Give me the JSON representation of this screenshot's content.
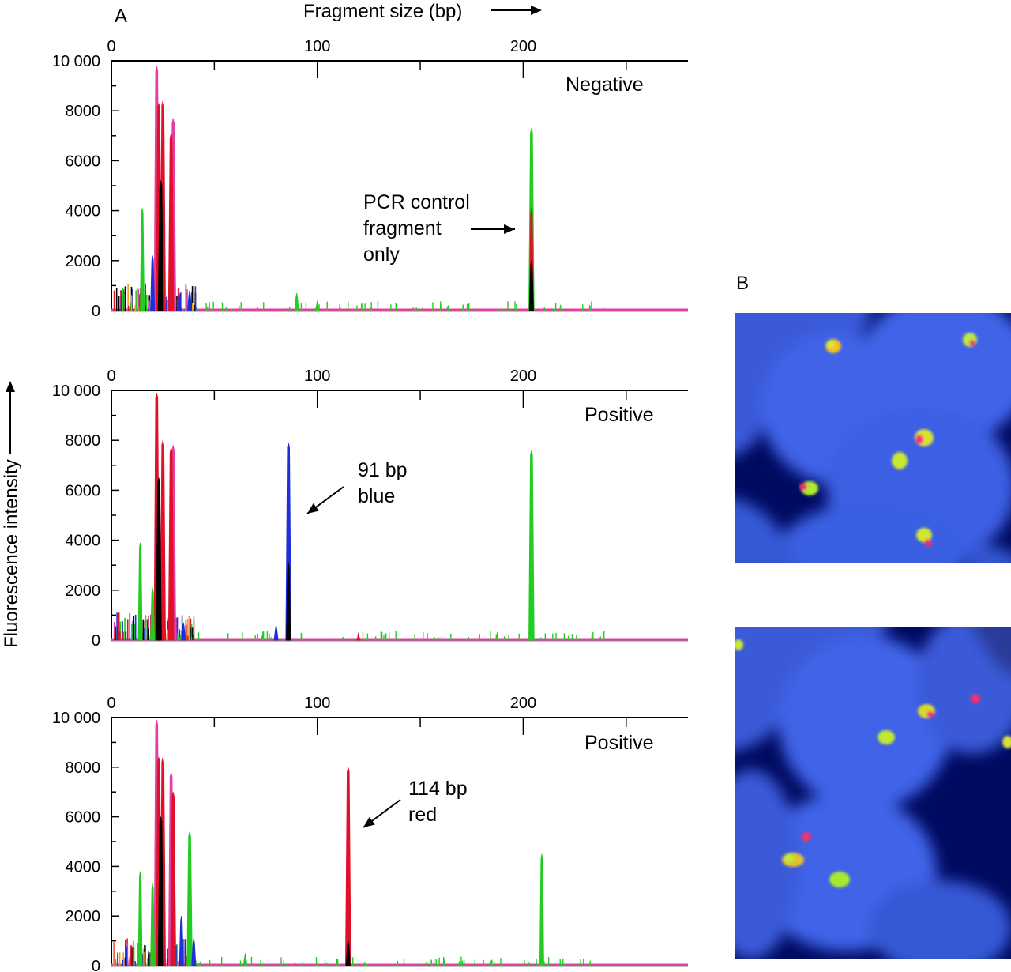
{
  "figure": {
    "panel_a_label": "A",
    "panel_b_label": "B",
    "top_axis_label": "Fragment size (bp)",
    "y_axis_label": "Fluorescence intensity",
    "colors": {
      "green": "#22cc22",
      "red": "#e0102a",
      "blue": "#1f2fd8",
      "black": "#000000",
      "magenta": "#e040a0",
      "orange": "#e8a020",
      "nucleus_blue": "#3f63e8",
      "background_dark": "#000a60"
    }
  },
  "chart_data": [
    {
      "type": "line",
      "panel": "A-top",
      "title": "Negative",
      "xlabel": "Fragment size (bp)",
      "ylabel": "Fluorescence intensity",
      "xlim": [
        0,
        280
      ],
      "ylim": [
        0,
        10000
      ],
      "x_ticks": [
        0,
        100,
        200
      ],
      "y_ticks": [
        0,
        2000,
        4000,
        6000,
        8000,
        10000
      ],
      "y_tick_labels": [
        "0",
        "2000",
        "4000",
        "6000",
        "8000",
        "10 000"
      ],
      "annotations": [
        {
          "lines": [
            "PCR control",
            "fragment",
            "only"
          ],
          "points_to_x": 204
        }
      ],
      "peaks": [
        {
          "x": 15,
          "y": 4100,
          "series": "green"
        },
        {
          "x": 20,
          "y": 2200,
          "series": "blue"
        },
        {
          "x": 22,
          "y": 9800,
          "series": "magenta"
        },
        {
          "x": 23,
          "y": 8300,
          "series": "red"
        },
        {
          "x": 24,
          "y": 5200,
          "series": "black"
        },
        {
          "x": 25,
          "y": 8400,
          "series": "red"
        },
        {
          "x": 29,
          "y": 7100,
          "series": "red"
        },
        {
          "x": 30,
          "y": 7700,
          "series": "magenta"
        },
        {
          "x": 33,
          "y": 700,
          "series": "blue"
        },
        {
          "x": 38,
          "y": 800,
          "series": "blue"
        },
        {
          "x": 90,
          "y": 700,
          "series": "green"
        },
        {
          "x": 100,
          "y": 400,
          "series": "green"
        },
        {
          "x": 204,
          "y": 7300,
          "series": "green"
        },
        {
          "x": 204,
          "y": 4100,
          "series": "red"
        },
        {
          "x": 204,
          "y": 2000,
          "series": "black"
        }
      ]
    },
    {
      "type": "line",
      "panel": "A-middle",
      "title": "Positive",
      "xlabel": "Fragment size (bp)",
      "ylabel": "Fluorescence intensity",
      "xlim": [
        0,
        280
      ],
      "ylim": [
        0,
        10000
      ],
      "x_ticks": [
        0,
        100,
        200
      ],
      "y_ticks": [
        0,
        2000,
        4000,
        6000,
        8000,
        10000
      ],
      "y_tick_labels": [
        "0",
        "2000",
        "4000",
        "6000",
        "8000",
        "10 000"
      ],
      "annotations": [
        {
          "lines": [
            "91 bp",
            "blue"
          ],
          "points_to_x": 91
        }
      ],
      "peaks": [
        {
          "x": 14,
          "y": 3900,
          "series": "green"
        },
        {
          "x": 20,
          "y": 2100,
          "series": "green"
        },
        {
          "x": 22,
          "y": 9900,
          "series": "red"
        },
        {
          "x": 23,
          "y": 6500,
          "series": "black"
        },
        {
          "x": 25,
          "y": 8000,
          "series": "red"
        },
        {
          "x": 29,
          "y": 7700,
          "series": "red"
        },
        {
          "x": 30,
          "y": 7800,
          "series": "magenta"
        },
        {
          "x": 35,
          "y": 700,
          "series": "blue"
        },
        {
          "x": 80,
          "y": 600,
          "series": "blue"
        },
        {
          "x": 86,
          "y": 7900,
          "series": "blue"
        },
        {
          "x": 86,
          "y": 3100,
          "series": "black"
        },
        {
          "x": 120,
          "y": 300,
          "series": "red"
        },
        {
          "x": 204,
          "y": 7600,
          "series": "green"
        }
      ]
    },
    {
      "type": "line",
      "panel": "A-bottom",
      "title": "Positive",
      "xlabel": "Fragment size (bp)",
      "ylabel": "Fluorescence intensity",
      "xlim": [
        0,
        280
      ],
      "ylim": [
        0,
        10000
      ],
      "x_ticks": [
        0,
        100,
        200
      ],
      "y_ticks": [
        0,
        2000,
        4000,
        6000,
        8000,
        10000
      ],
      "y_tick_labels": [
        "0",
        "2000",
        "4000",
        "6000",
        "8000",
        "10 000"
      ],
      "annotations": [
        {
          "lines": [
            "114 bp",
            "red"
          ],
          "points_to_x": 114
        }
      ],
      "peaks": [
        {
          "x": 14,
          "y": 3800,
          "series": "green"
        },
        {
          "x": 20,
          "y": 3300,
          "series": "green"
        },
        {
          "x": 22,
          "y": 9900,
          "series": "magenta"
        },
        {
          "x": 23,
          "y": 8400,
          "series": "red"
        },
        {
          "x": 24,
          "y": 6000,
          "series": "black"
        },
        {
          "x": 25,
          "y": 8400,
          "series": "red"
        },
        {
          "x": 29,
          "y": 7800,
          "series": "magenta"
        },
        {
          "x": 30,
          "y": 7000,
          "series": "red"
        },
        {
          "x": 34,
          "y": 2000,
          "series": "blue"
        },
        {
          "x": 38,
          "y": 5400,
          "series": "green"
        },
        {
          "x": 40,
          "y": 1100,
          "series": "blue"
        },
        {
          "x": 65,
          "y": 500,
          "series": "green"
        },
        {
          "x": 115,
          "y": 8000,
          "series": "red"
        },
        {
          "x": 115,
          "y": 1000,
          "series": "black"
        },
        {
          "x": 209,
          "y": 4500,
          "series": "green"
        }
      ]
    }
  ]
}
